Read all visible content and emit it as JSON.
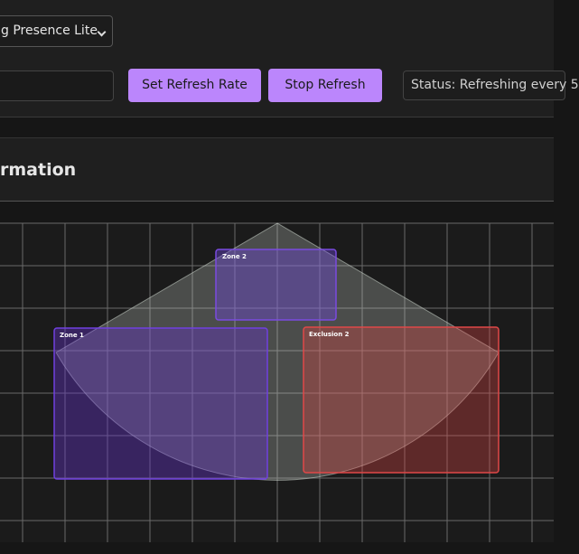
{
  "controls": {
    "device_select": "g Presence Lite",
    "set_refresh_button": "Set Refresh Rate",
    "stop_refresh_button": "Stop Refresh",
    "status": "Status: Refreshing every 5"
  },
  "section": {
    "title": "rmation"
  },
  "map": {
    "zones": [
      {
        "label": "Zone 2"
      },
      {
        "label": "Zone 1"
      },
      {
        "label": "Exclusion 2"
      }
    ]
  }
}
